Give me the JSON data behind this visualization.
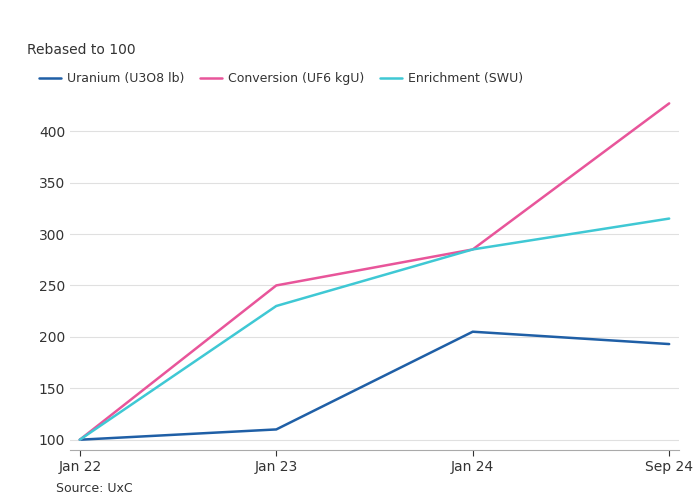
{
  "ylabel": "Rebased to 100",
  "source": "Source: UxC",
  "background_color": "#ffffff",
  "plot_bg_color": "#ffffff",
  "x_labels": [
    "Jan 22",
    "Jan 23",
    "Jan 24",
    "Sep 24"
  ],
  "x_values": [
    0,
    1,
    2,
    3
  ],
  "series": [
    {
      "name": "Uranium (U3O8 lb)",
      "color": "#1f5fa6",
      "linewidth": 1.8,
      "values": [
        100,
        110,
        205,
        193
      ]
    },
    {
      "name": "Conversion (UF6 kgU)",
      "color": "#e8559a",
      "linewidth": 1.8,
      "values": [
        100,
        250,
        285,
        427
      ]
    },
    {
      "name": "Enrichment (SWU)",
      "color": "#3fc8d4",
      "linewidth": 1.8,
      "values": [
        100,
        230,
        285,
        315
      ]
    }
  ],
  "ylim": [
    90,
    440
  ],
  "yticks": [
    100,
    150,
    200,
    250,
    300,
    350,
    400
  ],
  "grid_color": "#e0e0e0",
  "text_color": "#333333",
  "axis_color": "#aaaaaa",
  "ylabel_fontsize": 10,
  "tick_fontsize": 10,
  "legend_fontsize": 9,
  "source_fontsize": 9
}
